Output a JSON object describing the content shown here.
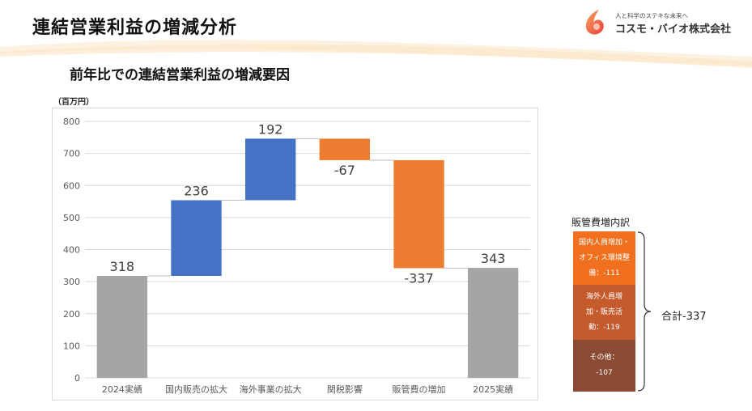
{
  "header": {
    "title": "連結営業利益の増減分析",
    "logo_tagline": "人と科学のステキな未来へ",
    "logo_name": "コスモ・バイオ株式会社"
  },
  "subtitle": "前年比での連結営業利益の増減要因",
  "unit_label": "（百万円）",
  "colors": {
    "increase": "#4472C4",
    "decrease": "#ED7D31",
    "total": "#A5A5A5",
    "axis_text": "#595959",
    "grid": "#D9D9D9"
  },
  "chart_data": {
    "type": "waterfall",
    "title": "",
    "xlabel": "",
    "ylabel": "",
    "ylim": [
      0,
      800
    ],
    "yticks": [
      0,
      100,
      200,
      300,
      400,
      500,
      600,
      700,
      800
    ],
    "grid": true,
    "legend": "none",
    "categories": [
      "2024実績",
      "国内販売の拡大",
      "海外事業の拡大",
      "関税影響",
      "販管費の増加",
      "2025実績"
    ],
    "values": [
      318,
      236,
      192,
      -67,
      -337,
      343
    ],
    "value_labels": [
      "318",
      "236",
      "192",
      "-67",
      "-337",
      "343"
    ],
    "kinds": [
      "total",
      "increase",
      "increase",
      "decrease",
      "decrease",
      "total"
    ]
  },
  "breakdown": {
    "title": "販管費増内訳",
    "items": [
      {
        "lines": [
          "国内人員増加・",
          "オフィス環境整",
          "備：-111"
        ],
        "value": -111,
        "color": "#F0701F"
      },
      {
        "lines": [
          "海外人員増",
          "加・販売活",
          "動：-119"
        ],
        "value": -119,
        "color": "#C55A2C"
      },
      {
        "lines": [
          "その他：",
          "-107"
        ],
        "value": -107,
        "color": "#8B4A32"
      }
    ],
    "total_label": "合計-337"
  }
}
